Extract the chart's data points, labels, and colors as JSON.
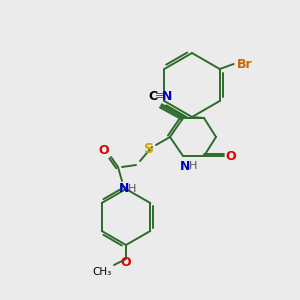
{
  "bg_color": "#ebebeb",
  "atom_colors": {
    "C": "#000000",
    "N": "#0000cc",
    "O": "#dd0000",
    "S": "#ccaa00",
    "Br": "#cc6600",
    "H": "#555555"
  },
  "bond_color": "#2d6b2d",
  "figsize": [
    3.0,
    3.0
  ],
  "dpi": 100
}
